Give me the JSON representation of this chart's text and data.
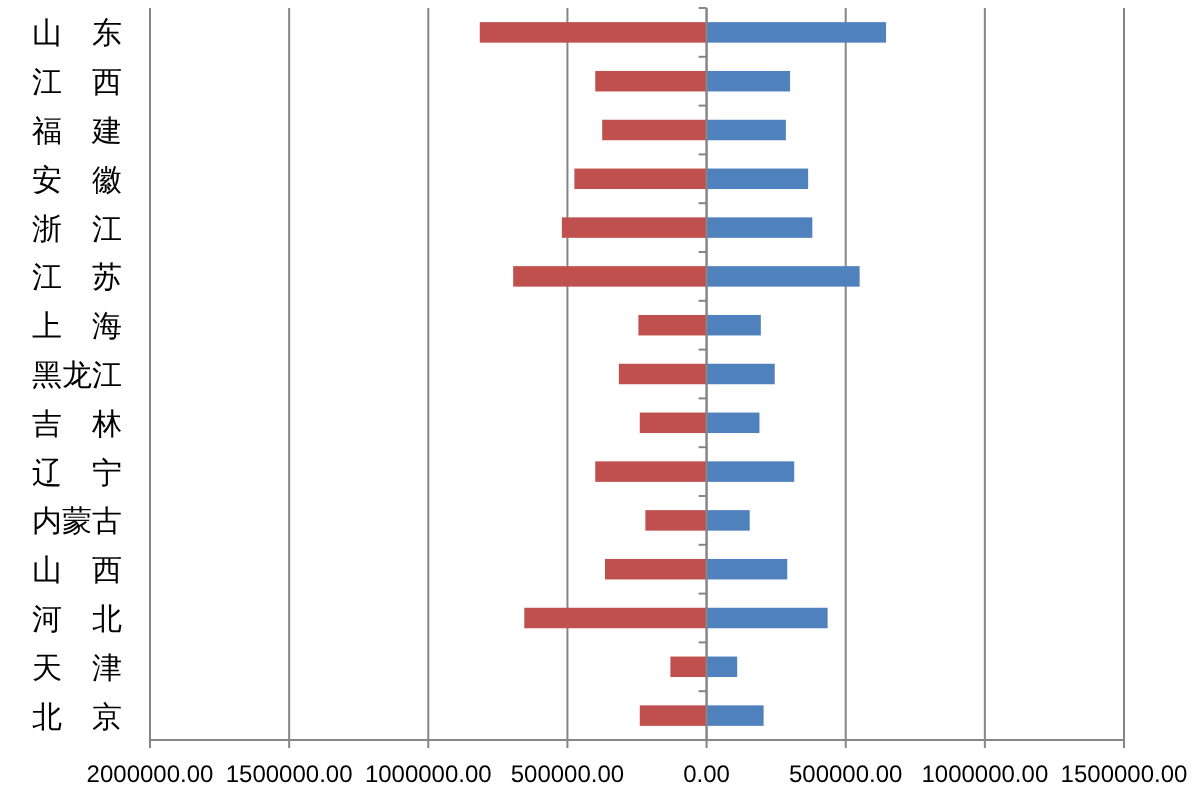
{
  "chart_data": {
    "type": "bar",
    "orientation": "horizontal",
    "stacked": true,
    "categories": [
      "山　东",
      "江　西",
      "福　建",
      "安　徽",
      "浙　江",
      "江　苏",
      "上　海",
      "黑龙江",
      "吉　林",
      "辽　宁",
      "内蒙古",
      "山　西",
      "河　北",
      "天　津",
      "北　京"
    ],
    "series": [
      {
        "color": "#c0504d",
        "values": [
          -815000,
          -400000,
          -375000,
          -475000,
          -520000,
          -695000,
          -245000,
          -315000,
          -240000,
          -400000,
          -220000,
          -365000,
          -655000,
          -130000,
          -240000
        ]
      },
      {
        "color": "#4f81bd",
        "values": [
          645000,
          300000,
          285000,
          365000,
          380000,
          550000,
          195000,
          245000,
          190000,
          315000,
          155000,
          290000,
          435000,
          110000,
          205000
        ]
      }
    ],
    "xlim": [
      -2000000,
      1500000
    ],
    "xticks": [
      {
        "value": -2000000,
        "label": "2000000.00"
      },
      {
        "value": -1500000,
        "label": "1500000.00"
      },
      {
        "value": -1000000,
        "label": "1000000.00"
      },
      {
        "value": -500000,
        "label": "500000.00"
      },
      {
        "value": 0,
        "label": "0.00"
      },
      {
        "value": 500000,
        "label": "500000.00"
      },
      {
        "value": 1000000,
        "label": "1000000.00"
      },
      {
        "value": 1500000,
        "label": "1500000.00"
      }
    ],
    "grid": "x"
  }
}
